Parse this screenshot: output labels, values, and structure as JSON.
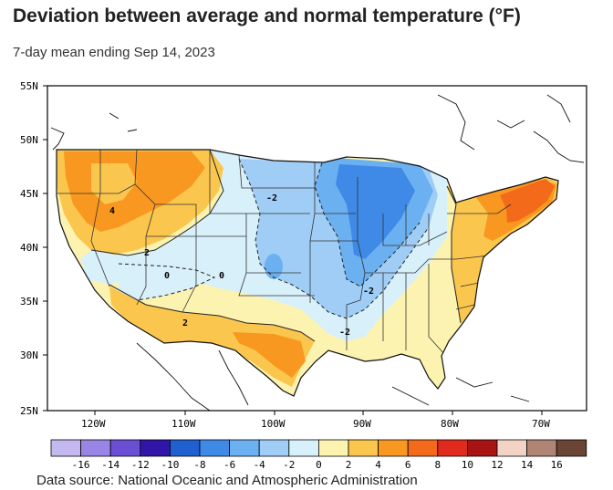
{
  "title": "Deviation between average and normal temperature (°F)",
  "subtitle": "7-day mean ending Sep 14, 2023",
  "source": "Data source: National Oceanic and Atmospheric Administration",
  "map": {
    "lat_ticks": [
      "55N",
      "50N",
      "45N",
      "40N",
      "35N",
      "30N",
      "25N"
    ],
    "lon_ticks": [
      "120W",
      "110W",
      "100W",
      "90W",
      "80W",
      "70W"
    ],
    "contour_labels": [
      "4",
      "2",
      "0",
      "-2",
      "0",
      "2",
      "-2",
      "-2"
    ]
  },
  "legend": {
    "labels": [
      "-16",
      "-14",
      "-12",
      "-10",
      "-8",
      "-6",
      "-4",
      "-2",
      "0",
      "2",
      "4",
      "6",
      "8",
      "10",
      "12",
      "14",
      "16"
    ],
    "colors": [
      "#c4b8f0",
      "#9a85e6",
      "#6a4fd4",
      "#2f16a8",
      "#1f5fd0",
      "#3f8ae6",
      "#6bb0f0",
      "#a0cdf6",
      "#d8f0fa",
      "#fdf3b0",
      "#fbc64e",
      "#f99820",
      "#f26a1a",
      "#e02a1e",
      "#a81414",
      "#f3d3c6",
      "#b08474",
      "#6a4434"
    ]
  }
}
